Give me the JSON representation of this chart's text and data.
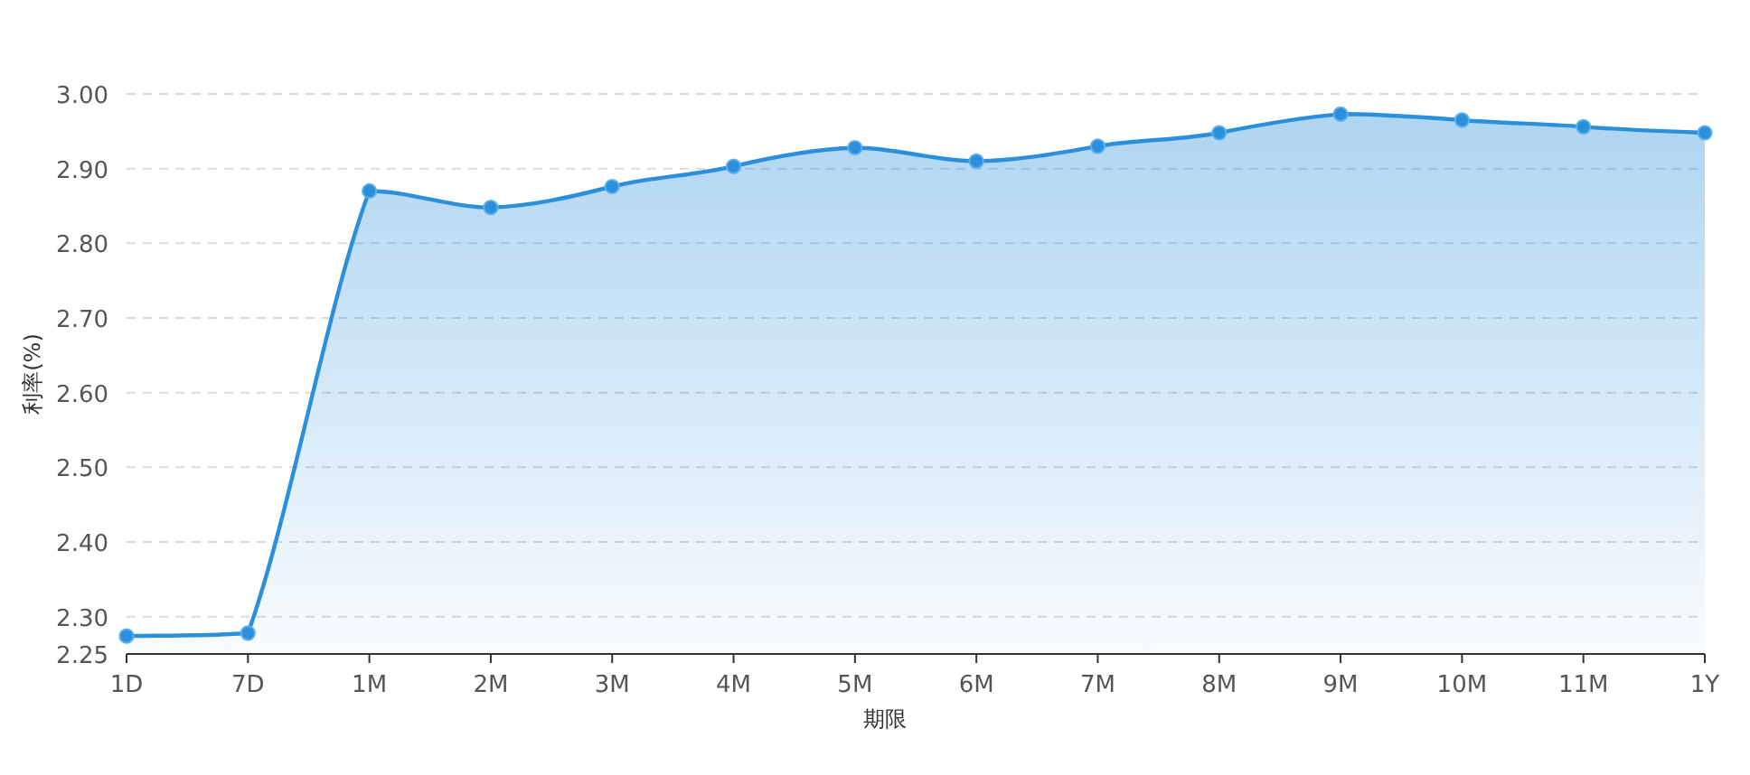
{
  "chart_data": {
    "type": "area",
    "xlabel": "期限",
    "ylabel": "利率(%)",
    "categories": [
      "1D",
      "7D",
      "1M",
      "2M",
      "3M",
      "4M",
      "5M",
      "6M",
      "7M",
      "8M",
      "9M",
      "10M",
      "11M",
      "1Y"
    ],
    "series": [
      {
        "color": "#2b8fdb",
        "values": [
          2.274,
          2.278,
          2.87,
          2.848,
          2.876,
          2.903,
          2.928,
          2.91,
          2.93,
          2.948,
          2.973,
          2.965,
          2.956,
          2.948
        ]
      }
    ],
    "ylim": [
      2.25,
      3.0
    ],
    "yticks": [
      {
        "value": 2.25,
        "label": "2.25"
      },
      {
        "value": 2.3,
        "label": "2.30"
      },
      {
        "value": 2.4,
        "label": "2.40"
      },
      {
        "value": 2.5,
        "label": "2.50"
      },
      {
        "value": 2.6,
        "label": "2.60"
      },
      {
        "value": 2.7,
        "label": "2.70"
      },
      {
        "value": 2.8,
        "label": "2.80"
      },
      {
        "value": 2.9,
        "label": "2.90"
      },
      {
        "value": 3.0,
        "label": "3.00"
      }
    ],
    "grid": "y",
    "marker": "circle",
    "line_style": "solid"
  }
}
